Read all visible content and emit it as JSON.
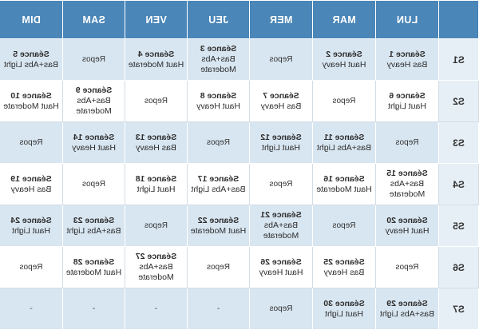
{
  "headers": [
    "",
    "LUN",
    "MAR",
    "MER",
    "JEU",
    "VEN",
    "SAM",
    "DIM"
  ],
  "rows": [
    {
      "week": "S1",
      "cells": [
        {
          "title": "Séance 1",
          "desc": "Bas Heavy"
        },
        {
          "title": "Séance 2",
          "desc": "Haut Heavy"
        },
        {
          "title": "",
          "desc": "Repos"
        },
        {
          "title": "Séance 3",
          "desc": "Bas+Abs Moderate"
        },
        {
          "title": "Séance 4",
          "desc": "Haut Moderate"
        },
        {
          "title": "",
          "desc": "Repos"
        },
        {
          "title": "Séance 5",
          "desc": "Bas+Abs Light"
        }
      ]
    },
    {
      "week": "S2",
      "cells": [
        {
          "title": "Séance 6",
          "desc": "Haut Light"
        },
        {
          "title": "",
          "desc": "Repos"
        },
        {
          "title": "Séance 7",
          "desc": "Bas Heavy"
        },
        {
          "title": "Séance 8",
          "desc": "Haut Heavy"
        },
        {
          "title": "",
          "desc": "Repos"
        },
        {
          "title": "Séance 9",
          "desc": "Bas+Abs Moderate"
        },
        {
          "title": "Séance 10",
          "desc": "Haut Moderate"
        }
      ]
    },
    {
      "week": "S3",
      "cells": [
        {
          "title": "",
          "desc": "Repos"
        },
        {
          "title": "Séance 11",
          "desc": "Bas+Abs Light"
        },
        {
          "title": "Séance 12",
          "desc": "Haut Light"
        },
        {
          "title": "",
          "desc": "Repos"
        },
        {
          "title": "Séance 13",
          "desc": "Bas Heavy"
        },
        {
          "title": "Séance 14",
          "desc": "Haut Heavy"
        },
        {
          "title": "",
          "desc": "Repos"
        }
      ]
    },
    {
      "week": "S4",
      "cells": [
        {
          "title": "Séance 15",
          "desc": "Bas+Abs Moderate"
        },
        {
          "title": "Séance 16",
          "desc": "Haut Moderate"
        },
        {
          "title": "",
          "desc": "Repos"
        },
        {
          "title": "Séance 17",
          "desc": "Bas+Abs Light"
        },
        {
          "title": "Séance 18",
          "desc": "Haut Light"
        },
        {
          "title": "",
          "desc": "Repos"
        },
        {
          "title": "Séance 19",
          "desc": "Bas Heavy"
        }
      ]
    },
    {
      "week": "S5",
      "cells": [
        {
          "title": "Séance 20",
          "desc": "Haut Heavy"
        },
        {
          "title": "",
          "desc": "Repos"
        },
        {
          "title": "Séance 21",
          "desc": "Bas+Abs Moderate"
        },
        {
          "title": "Séance 22",
          "desc": "Haut Moderate"
        },
        {
          "title": "",
          "desc": "Repos"
        },
        {
          "title": "Séance 23",
          "desc": "Bas+Abs Light"
        },
        {
          "title": "Séance 24",
          "desc": "Haut Light"
        }
      ]
    },
    {
      "week": "S6",
      "cells": [
        {
          "title": "",
          "desc": "Repos"
        },
        {
          "title": "Séance 25",
          "desc": "Bas Heavy"
        },
        {
          "title": "Séance 26",
          "desc": "Haut Heavy"
        },
        {
          "title": "",
          "desc": "Repos"
        },
        {
          "title": "Séance 27",
          "desc": "Bas+Abs Moderate"
        },
        {
          "title": "Séance 28",
          "desc": "Haut Moderate"
        },
        {
          "title": "",
          "desc": "Repos"
        }
      ]
    },
    {
      "week": "S7",
      "cells": [
        {
          "title": "Séance 29",
          "desc": "Bas+Abs Light"
        },
        {
          "title": "Séance 30",
          "desc": "Haut Light"
        },
        {
          "title": "",
          "desc": "Repos"
        },
        {
          "title": "",
          "desc": "-"
        },
        {
          "title": "",
          "desc": "-"
        },
        {
          "title": "",
          "desc": "-"
        },
        {
          "title": "",
          "desc": "-"
        }
      ]
    }
  ],
  "colors": {
    "header_bg": "#4a86b8",
    "band_blue": "#d8e6f1",
    "band_white": "#ffffff",
    "week_col": "#e6eff6"
  }
}
